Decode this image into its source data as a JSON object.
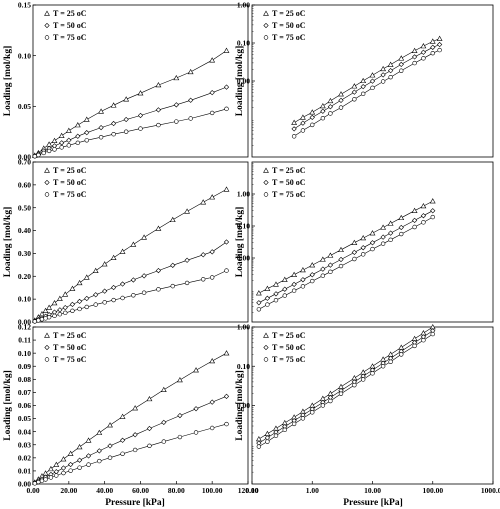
{
  "figure": {
    "x_label_common": "Pressure [kPa]"
  },
  "chart_data": [
    {
      "type": "scatter",
      "ylabel": "Loading [mol/kg]",
      "xlabel": "",
      "xlim": [
        0,
        120
      ],
      "ylim": [
        0,
        0.15
      ],
      "x_ticks": [],
      "y_ticks": [
        0.0,
        0.05,
        0.1,
        0.15
      ],
      "y_tick_labels": [
        "0.00",
        "0.05",
        "0.10",
        "0.15"
      ],
      "legend_position": "top-left",
      "series": [
        {
          "name": "T = 25 oC",
          "marker": "triangle",
          "x": [
            1,
            3,
            6,
            9,
            12,
            16,
            20,
            25,
            30,
            38,
            45,
            52,
            60,
            70,
            80,
            88,
            100,
            108
          ],
          "y": [
            0.0015,
            0.004,
            0.0085,
            0.0125,
            0.016,
            0.021,
            0.026,
            0.0315,
            0.037,
            0.045,
            0.051,
            0.057,
            0.063,
            0.071,
            0.078,
            0.084,
            0.0955,
            0.105
          ]
        },
        {
          "name": "T = 50 oC",
          "marker": "diamond",
          "x": [
            1,
            3,
            6,
            9,
            12,
            16,
            20,
            25,
            30,
            38,
            45,
            52,
            60,
            70,
            80,
            88,
            100,
            108
          ],
          "y": [
            0.001,
            0.003,
            0.006,
            0.0085,
            0.011,
            0.014,
            0.0165,
            0.0205,
            0.024,
            0.029,
            0.033,
            0.037,
            0.041,
            0.0465,
            0.0515,
            0.056,
            0.0635,
            0.069
          ]
        },
        {
          "name": "T = 75 oC",
          "marker": "circle",
          "x": [
            1,
            3,
            6,
            9,
            12,
            16,
            20,
            25,
            30,
            38,
            45,
            52,
            60,
            70,
            80,
            88,
            100,
            108
          ],
          "y": [
            0.0007,
            0.002,
            0.004,
            0.006,
            0.0075,
            0.0095,
            0.0115,
            0.014,
            0.0165,
            0.0195,
            0.0225,
            0.025,
            0.028,
            0.0315,
            0.035,
            0.038,
            0.0435,
            0.0475
          ]
        }
      ]
    },
    {
      "type": "scatter",
      "ylabel": "Loading [mol/kg]",
      "xlabel": "",
      "x_scale": "log",
      "y_scale": "log",
      "xlim": [
        0.1,
        1000
      ],
      "ylim": [
        0.0001,
        1
      ],
      "x_ticks": [],
      "y_ticks": [
        1,
        0.1,
        0.01
      ],
      "y_tick_labels": [
        "1.00",
        "0.10",
        "0.00"
      ],
      "legend_position": "top-left",
      "series": [
        {
          "name": "T = 25 oC",
          "marker": "triangle",
          "x": [
            0.5,
            0.7,
            1,
            1.5,
            2,
            3,
            5,
            7,
            10,
            15,
            20,
            30,
            50,
            70,
            100,
            130
          ],
          "y": [
            0.0008,
            0.0011,
            0.0015,
            0.0022,
            0.003,
            0.0045,
            0.0073,
            0.0101,
            0.0142,
            0.0208,
            0.027,
            0.0395,
            0.0625,
            0.083,
            0.11,
            0.13
          ]
        },
        {
          "name": "T = 50 oC",
          "marker": "diamond",
          "x": [
            0.5,
            0.7,
            1,
            1.5,
            2,
            3,
            5,
            7,
            10,
            15,
            20,
            30,
            50,
            70,
            100,
            130
          ],
          "y": [
            0.00055,
            0.00078,
            0.0011,
            0.0016,
            0.0021,
            0.0031,
            0.0051,
            0.0071,
            0.0099,
            0.0145,
            0.0187,
            0.0273,
            0.043,
            0.057,
            0.077,
            0.091
          ]
        },
        {
          "name": "T = 75 oC",
          "marker": "circle",
          "x": [
            0.5,
            0.7,
            1,
            1.5,
            2,
            3,
            5,
            7,
            10,
            15,
            20,
            30,
            50,
            70,
            100,
            130
          ],
          "y": [
            0.00035,
            0.0005,
            0.0007,
            0.00105,
            0.0014,
            0.002,
            0.0033,
            0.0046,
            0.0066,
            0.0097,
            0.0126,
            0.0186,
            0.0296,
            0.0395,
            0.054,
            0.065
          ]
        }
      ]
    },
    {
      "type": "scatter",
      "ylabel": "Loading [mol/kg]",
      "xlabel": "",
      "xlim": [
        0,
        120
      ],
      "ylim": [
        0,
        0.7
      ],
      "x_ticks": [],
      "y_ticks": [
        0,
        0.1,
        0.2,
        0.3,
        0.4,
        0.5,
        0.6,
        0.7
      ],
      "y_tick_labels": [
        "0.00",
        "0.10",
        "0.20",
        "0.30",
        "0.40",
        "0.50",
        "0.60",
        "0.70"
      ],
      "legend_position": "top-left",
      "series": [
        {
          "name": "T = 25 oC",
          "marker": "triangle",
          "x": [
            1,
            3,
            5,
            7,
            9,
            12,
            15,
            18,
            22,
            26,
            30,
            35,
            40,
            45,
            50,
            56,
            62,
            70,
            78,
            86,
            95,
            100,
            108
          ],
          "y": [
            0.007,
            0.021,
            0.035,
            0.049,
            0.063,
            0.083,
            0.102,
            0.121,
            0.146,
            0.171,
            0.195,
            0.224,
            0.253,
            0.281,
            0.308,
            0.339,
            0.37,
            0.409,
            0.447,
            0.484,
            0.524,
            0.546,
            0.58
          ]
        },
        {
          "name": "T = 50 oC",
          "marker": "diamond",
          "x": [
            1,
            3,
            5,
            7,
            9,
            12,
            15,
            18,
            22,
            26,
            30,
            35,
            40,
            45,
            50,
            56,
            62,
            70,
            78,
            86,
            95,
            100,
            108
          ],
          "y": [
            0.004,
            0.011,
            0.018,
            0.025,
            0.032,
            0.043,
            0.053,
            0.063,
            0.077,
            0.09,
            0.103,
            0.119,
            0.135,
            0.151,
            0.166,
            0.184,
            0.202,
            0.225,
            0.248,
            0.27,
            0.294,
            0.307,
            0.35
          ]
        },
        {
          "name": "T = 75 oC",
          "marker": "circle",
          "x": [
            1,
            3,
            5,
            7,
            9,
            12,
            15,
            18,
            22,
            26,
            30,
            35,
            40,
            45,
            50,
            56,
            62,
            70,
            78,
            86,
            95,
            100,
            108
          ],
          "y": [
            0.0025,
            0.007,
            0.012,
            0.016,
            0.021,
            0.027,
            0.034,
            0.04,
            0.049,
            0.057,
            0.066,
            0.076,
            0.086,
            0.096,
            0.105,
            0.117,
            0.128,
            0.143,
            0.157,
            0.171,
            0.187,
            0.195,
            0.225
          ]
        }
      ]
    },
    {
      "type": "scatter",
      "ylabel": "Loading [mol/kg]",
      "xlabel": "",
      "x_scale": "log",
      "y_scale": "log",
      "xlim": [
        0.1,
        1000
      ],
      "ylim": [
        0.0001,
        10
      ],
      "x_ticks": [],
      "y_ticks": [
        1,
        0.1,
        0.01
      ],
      "y_tick_labels": [
        "1.00",
        "0.10",
        "0.00"
      ],
      "legend_position": "top-left",
      "series": [
        {
          "name": "T = 25 oC",
          "marker": "triangle",
          "x": [
            0.13,
            0.18,
            0.25,
            0.35,
            0.5,
            0.7,
            1,
            1.5,
            2,
            3,
            5,
            7,
            10,
            15,
            20,
            30,
            50,
            70,
            100
          ],
          "y": [
            0.0008,
            0.0011,
            0.0015,
            0.0021,
            0.003,
            0.0042,
            0.006,
            0.009,
            0.012,
            0.018,
            0.03,
            0.042,
            0.06,
            0.09,
            0.12,
            0.18,
            0.3,
            0.42,
            0.6
          ]
        },
        {
          "name": "T = 50 oC",
          "marker": "diamond",
          "x": [
            0.13,
            0.18,
            0.25,
            0.35,
            0.5,
            0.7,
            1,
            1.5,
            2,
            3,
            5,
            7,
            10,
            15,
            20,
            30,
            50,
            70,
            100
          ],
          "y": [
            0.0004,
            0.00055,
            0.00076,
            0.00106,
            0.0015,
            0.0021,
            0.003,
            0.0045,
            0.006,
            0.009,
            0.015,
            0.021,
            0.03,
            0.045,
            0.06,
            0.09,
            0.15,
            0.21,
            0.3
          ]
        },
        {
          "name": "T = 75 oC",
          "marker": "circle",
          "x": [
            0.13,
            0.18,
            0.25,
            0.35,
            0.5,
            0.7,
            1,
            1.5,
            2,
            3,
            5,
            7,
            10,
            15,
            20,
            30,
            50,
            70,
            100
          ],
          "y": [
            0.00025,
            0.00035,
            0.00048,
            0.00067,
            0.00095,
            0.0013,
            0.0019,
            0.0028,
            0.0037,
            0.0056,
            0.0093,
            0.013,
            0.019,
            0.028,
            0.037,
            0.056,
            0.093,
            0.13,
            0.19
          ]
        }
      ]
    },
    {
      "type": "scatter",
      "ylabel": "Loading [mol/kg]",
      "xlabel": "Pressure [kPa]",
      "xlim": [
        0,
        120
      ],
      "ylim": [
        0,
        0.12
      ],
      "x_ticks": [
        0,
        20,
        40,
        60,
        80,
        100,
        120
      ],
      "x_tick_labels": [
        "0.00",
        "20.00",
        "40.00",
        "60.00",
        "80.00",
        "100.00",
        "120.00"
      ],
      "y_ticks": [
        0,
        0.01,
        0.02,
        0.03,
        0.04,
        0.05,
        0.06,
        0.07,
        0.08,
        0.09,
        0.1,
        0.11,
        0.12
      ],
      "y_tick_labels": [
        "0.00",
        "0.01",
        "0.02",
        "0.03",
        "0.04",
        "0.05",
        "0.06",
        "0.07",
        "0.08",
        "0.09",
        "0.10",
        "0.11",
        "0.12"
      ],
      "legend_position": "top-left",
      "series": [
        {
          "name": "T = 25 oC",
          "marker": "triangle",
          "x": [
            1,
            3,
            5,
            7,
            10,
            13,
            17,
            21,
            26,
            31,
            37,
            43,
            50,
            57,
            65,
            73,
            82,
            91,
            100,
            108
          ],
          "y": [
            0.0012,
            0.0036,
            0.006,
            0.0082,
            0.0115,
            0.0148,
            0.019,
            0.0232,
            0.0283,
            0.0333,
            0.0392,
            0.045,
            0.0515,
            0.058,
            0.065,
            0.072,
            0.0795,
            0.087,
            0.094,
            0.1
          ]
        },
        {
          "name": "T = 50 oC",
          "marker": "diamond",
          "x": [
            1,
            3,
            5,
            7,
            10,
            13,
            17,
            21,
            26,
            31,
            37,
            43,
            50,
            57,
            65,
            73,
            82,
            91,
            100,
            108
          ],
          "y": [
            0.0008,
            0.0023,
            0.0037,
            0.0052,
            0.0073,
            0.0094,
            0.0122,
            0.0149,
            0.0182,
            0.0215,
            0.0253,
            0.0291,
            0.0334,
            0.0376,
            0.0424,
            0.0471,
            0.0523,
            0.0575,
            0.0626,
            0.067
          ]
        },
        {
          "name": "T = 75 oC",
          "marker": "circle",
          "x": [
            1,
            3,
            5,
            7,
            10,
            13,
            17,
            21,
            26,
            31,
            37,
            43,
            50,
            57,
            65,
            73,
            82,
            91,
            100,
            108
          ],
          "y": [
            0.0005,
            0.0015,
            0.0025,
            0.0035,
            0.005,
            0.0065,
            0.0084,
            0.0102,
            0.0125,
            0.0148,
            0.0175,
            0.0201,
            0.0231,
            0.026,
            0.0292,
            0.0324,
            0.0359,
            0.0394,
            0.0428,
            0.0458
          ]
        }
      ]
    },
    {
      "type": "scatter",
      "ylabel": "Loading [mol/kg]",
      "xlabel": "Pressure [kPa]",
      "x_scale": "log",
      "y_scale": "log",
      "xlim": [
        0.1,
        1000
      ],
      "ylim": [
        0.0001,
        1
      ],
      "x_ticks": [
        0.1,
        1,
        10,
        100,
        1000
      ],
      "x_tick_labels": [
        "0.10",
        "1.00",
        "10.00",
        "100.00",
        "1000.00"
      ],
      "y_ticks": [
        1,
        0.1,
        0.01
      ],
      "y_tick_labels": [
        "1.00",
        "0.10",
        "0.00"
      ],
      "legend_position": "top-left",
      "series": [
        {
          "name": "T = 25 oC",
          "marker": "triangle",
          "x": [
            0.13,
            0.18,
            0.25,
            0.35,
            0.5,
            0.7,
            1,
            1.5,
            2,
            3,
            5,
            7,
            10,
            15,
            20,
            30,
            50,
            70,
            100
          ],
          "y": [
            0.0014,
            0.0019,
            0.0026,
            0.0036,
            0.005,
            0.007,
            0.01,
            0.015,
            0.02,
            0.03,
            0.05,
            0.07,
            0.1,
            0.15,
            0.2,
            0.3,
            0.5,
            0.7,
            1.0
          ]
        },
        {
          "name": "T = 50 oC",
          "marker": "diamond",
          "x": [
            0.13,
            0.18,
            0.25,
            0.35,
            0.5,
            0.7,
            1,
            1.5,
            2,
            3,
            5,
            7,
            10,
            15,
            20,
            30,
            50,
            70,
            100
          ],
          "y": [
            0.0011,
            0.0015,
            0.0021,
            0.0029,
            0.0041,
            0.0057,
            0.0081,
            0.012,
            0.016,
            0.024,
            0.04,
            0.056,
            0.08,
            0.12,
            0.16,
            0.24,
            0.4,
            0.56,
            0.8
          ]
        },
        {
          "name": "T = 75 oC",
          "marker": "circle",
          "x": [
            0.13,
            0.18,
            0.25,
            0.35,
            0.5,
            0.7,
            1,
            1.5,
            2,
            3,
            5,
            7,
            10,
            15,
            20,
            30,
            50,
            70,
            100
          ],
          "y": [
            0.0009,
            0.0012,
            0.0017,
            0.0024,
            0.0034,
            0.0047,
            0.0067,
            0.01,
            0.013,
            0.02,
            0.033,
            0.046,
            0.066,
            0.1,
            0.13,
            0.2,
            0.33,
            0.46,
            0.66
          ]
        }
      ]
    }
  ]
}
